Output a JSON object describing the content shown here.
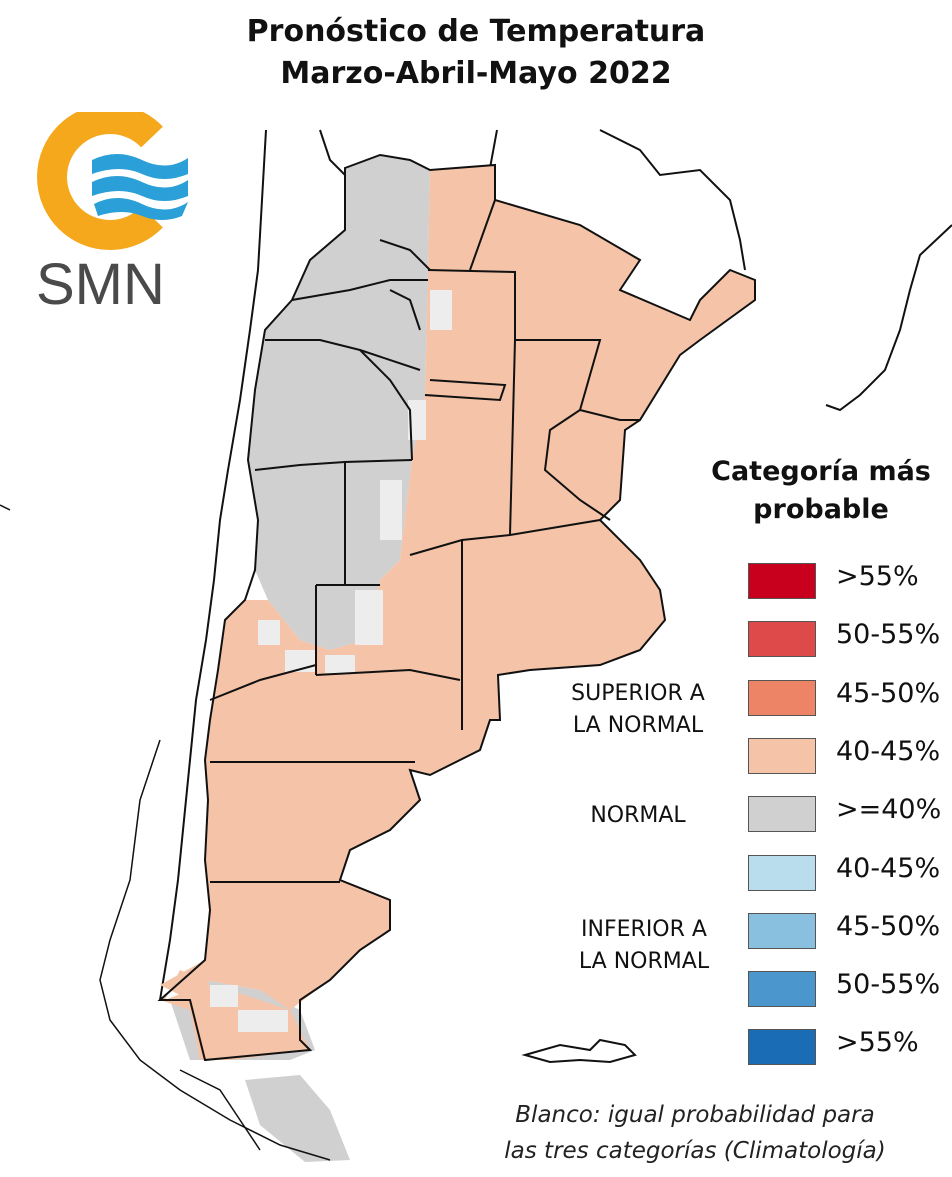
{
  "header": {
    "title_line1": "Pronóstico de Temperatura",
    "title_line2": "Marzo-Abril-Mayo 2022"
  },
  "logo": {
    "text": "SMN",
    "icon": "smn-logo-icon",
    "colors": {
      "ring": "#F5A81C",
      "waves": "#2A9FD8"
    }
  },
  "legend": {
    "title_line1": "Categoría más",
    "title_line2": "probable",
    "categories": {
      "superior": [
        "SUPERIOR A",
        "LA NORMAL"
      ],
      "normal": "NORMAL",
      "inferior": [
        "INFERIOR A",
        "LA NORMAL"
      ]
    },
    "items": [
      {
        "label": ">55%",
        "color": "#C8001E"
      },
      {
        "label": "50-55%",
        "color": "#DE4A4A"
      },
      {
        "label": "45-50%",
        "color": "#EE8466"
      },
      {
        "label": "40-45%",
        "color": "#F4C3A8"
      },
      {
        "label": ">=40%",
        "color": "#D0D0D0"
      },
      {
        "label": "40-45%",
        "color": "#B9DDED"
      },
      {
        "label": "45-50%",
        "color": "#89C0E0"
      },
      {
        "label": "50-55%",
        "color": "#4B96CC"
      },
      {
        "label": ">55%",
        "color": "#1A6DB5"
      }
    ]
  },
  "note": {
    "line1": "Blanco: igual probabilidad para",
    "line2": "las tres categorías (Climatología)"
  },
  "map_colors": {
    "superior_40_45": "#F4C3A8",
    "normal": "#D0D0D0",
    "white": "#EDEDED",
    "border": "#111111"
  }
}
